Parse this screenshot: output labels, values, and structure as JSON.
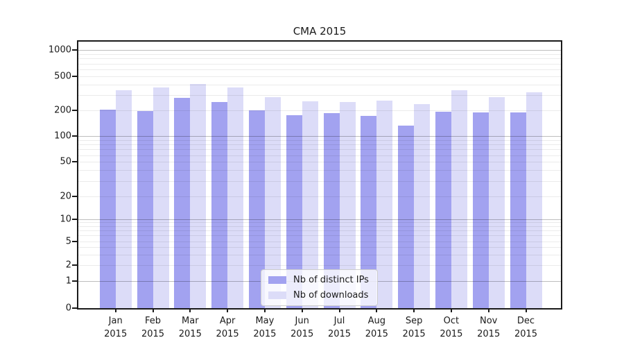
{
  "page": {
    "background": "#ffffff"
  },
  "chart_data": {
    "type": "bar",
    "title": "CMA 2015",
    "categories": [
      "Jan",
      "Feb",
      "Mar",
      "Apr",
      "May",
      "Jun",
      "Jul",
      "Aug",
      "Sep",
      "Oct",
      "Nov",
      "Dec"
    ],
    "category_year": "2015",
    "series": [
      {
        "name": "Nb of distinct IPs",
        "color": "#a2a2f0",
        "values": [
          205,
          197,
          280,
          250,
          200,
          176,
          186,
          172,
          134,
          194,
          190,
          190
        ]
      },
      {
        "name": "Nb of downloads",
        "color": "#dcdcf8",
        "values": [
          345,
          370,
          405,
          370,
          285,
          257,
          252,
          258,
          238,
          345,
          286,
          323
        ]
      }
    ],
    "xlabel": "",
    "ylabel": "",
    "y_scale": "symlog",
    "y_ticks": [
      0,
      1,
      2,
      5,
      10,
      20,
      50,
      100,
      200,
      500,
      1000
    ],
    "ylim": [
      0,
      1270
    ],
    "grid": {
      "orientation": "horizontal",
      "major_values": [
        1,
        10,
        100,
        1000
      ],
      "minor_values": [
        2,
        3,
        4,
        5,
        6,
        7,
        8,
        9,
        20,
        30,
        40,
        50,
        60,
        70,
        80,
        90,
        200,
        300,
        400,
        500,
        600,
        700,
        800,
        900
      ]
    },
    "scale_anchors": [
      [
        0,
        0
      ],
      [
        1,
        0.1016
      ],
      [
        2,
        0.1602
      ],
      [
        5,
        0.25
      ],
      [
        10,
        0.3346
      ],
      [
        20,
        0.4201
      ],
      [
        50,
        0.5487
      ],
      [
        100,
        0.645
      ],
      [
        200,
        0.7422
      ],
      [
        500,
        0.8706
      ],
      [
        1000,
        0.968
      ],
      [
        1270,
        1.0
      ]
    ],
    "legend": {
      "position": "lower-center-inside"
    }
  }
}
